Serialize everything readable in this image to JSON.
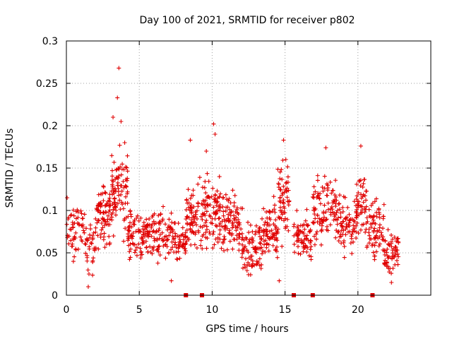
{
  "chart_data": {
    "type": "scatter",
    "title": "Day 100 of 2021, SRMTID for receiver p802",
    "xlabel": "GPS time / hours",
    "ylabel": "SRMTID / TECUs",
    "xlim": [
      0,
      25
    ],
    "ylim": [
      0,
      0.3
    ],
    "x_ticks": [
      "0",
      "5",
      "10",
      "15",
      "20"
    ],
    "y_ticks": [
      "0",
      "0.05",
      "0.1",
      "0.15",
      "0.2",
      "0.25",
      "0.3"
    ],
    "grid": true,
    "marker": "plus",
    "color": "#e00000",
    "points_description": "dense cloud of SRMTID samples, mostly 0.03-0.13 TECU, from 0 to 23 hours",
    "highlighted_points": [
      {
        "x": 0.05,
        "y": 0.115
      },
      {
        "x": 1.5,
        "y": 0.01
      },
      {
        "x": 1.55,
        "y": 0.025
      },
      {
        "x": 3.2,
        "y": 0.21
      },
      {
        "x": 3.5,
        "y": 0.233
      },
      {
        "x": 3.6,
        "y": 0.268
      },
      {
        "x": 3.75,
        "y": 0.205
      },
      {
        "x": 4.0,
        "y": 0.18
      },
      {
        "x": 8.5,
        "y": 0.183
      },
      {
        "x": 9.6,
        "y": 0.17
      },
      {
        "x": 10.1,
        "y": 0.202
      },
      {
        "x": 10.2,
        "y": 0.19
      },
      {
        "x": 14.9,
        "y": 0.183
      },
      {
        "x": 17.8,
        "y": 0.174
      },
      {
        "x": 20.2,
        "y": 0.176
      },
      {
        "x": 22.3,
        "y": 0.015
      },
      {
        "x": 7.2,
        "y": 0.017
      },
      {
        "x": 14.6,
        "y": 0.017
      }
    ],
    "cluster_profile": [
      {
        "x0": 0.0,
        "x1": 1.3,
        "lo": 0.04,
        "hi": 0.11,
        "n": 55
      },
      {
        "x0": 1.3,
        "x1": 2.0,
        "lo": 0.015,
        "hi": 0.1,
        "n": 30
      },
      {
        "x0": 2.0,
        "x1": 3.0,
        "lo": 0.05,
        "hi": 0.135,
        "n": 80
      },
      {
        "x0": 3.0,
        "x1": 4.2,
        "lo": 0.06,
        "hi": 0.175,
        "n": 90
      },
      {
        "x0": 4.2,
        "x1": 7.5,
        "lo": 0.035,
        "hi": 0.105,
        "n": 190
      },
      {
        "x0": 7.5,
        "x1": 8.2,
        "lo": 0.04,
        "hi": 0.09,
        "n": 40
      },
      {
        "x0": 8.2,
        "x1": 9.3,
        "lo": 0.04,
        "hi": 0.14,
        "n": 70
      },
      {
        "x0": 9.3,
        "x1": 10.6,
        "lo": 0.045,
        "hi": 0.145,
        "n": 95
      },
      {
        "x0": 10.6,
        "x1": 12.0,
        "lo": 0.04,
        "hi": 0.125,
        "n": 90
      },
      {
        "x0": 12.0,
        "x1": 13.5,
        "lo": 0.02,
        "hi": 0.1,
        "n": 90
      },
      {
        "x0": 13.5,
        "x1": 14.5,
        "lo": 0.03,
        "hi": 0.12,
        "n": 70
      },
      {
        "x0": 14.5,
        "x1": 15.3,
        "lo": 0.05,
        "hi": 0.17,
        "n": 60
      },
      {
        "x0": 15.6,
        "x1": 16.8,
        "lo": 0.03,
        "hi": 0.1,
        "n": 70
      },
      {
        "x0": 16.9,
        "x1": 18.5,
        "lo": 0.05,
        "hi": 0.145,
        "n": 95
      },
      {
        "x0": 18.5,
        "x1": 19.9,
        "lo": 0.045,
        "hi": 0.12,
        "n": 80
      },
      {
        "x0": 19.9,
        "x1": 20.6,
        "lo": 0.06,
        "hi": 0.155,
        "n": 50
      },
      {
        "x0": 20.6,
        "x1": 21.8,
        "lo": 0.035,
        "hi": 0.12,
        "n": 70
      },
      {
        "x0": 21.8,
        "x1": 22.8,
        "lo": 0.015,
        "hi": 0.08,
        "n": 60
      }
    ],
    "gap_markers": [
      8.2,
      9.3,
      15.6,
      16.9,
      21.0
    ]
  }
}
